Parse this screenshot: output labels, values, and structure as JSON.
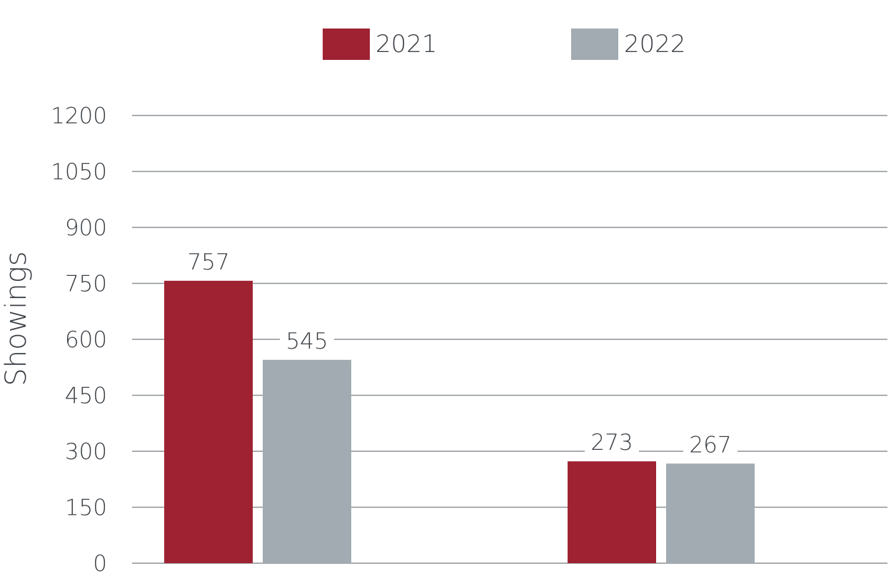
{
  "chart_data": {
    "type": "bar",
    "categories": [
      "",
      ""
    ],
    "series": [
      {
        "name": "2021",
        "values": [
          757,
          273
        ],
        "color": "#9e2232"
      },
      {
        "name": "2022",
        "values": [
          545,
          267
        ],
        "color": "#a2abb1"
      }
    ],
    "data_labels": [
      [
        "757",
        "273"
      ],
      [
        "545",
        "267"
      ]
    ],
    "ylabel": "Showings",
    "ylim": [
      0,
      1200
    ],
    "yticks": [
      0,
      150,
      300,
      450,
      600,
      750,
      900,
      1050,
      1200
    ],
    "grid": true,
    "legend": "top-center"
  }
}
